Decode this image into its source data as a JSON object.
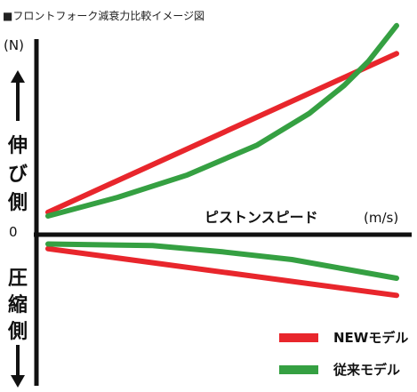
{
  "chart_data": {
    "type": "line",
    "title": "■フロントフォーク減衰力比較イメージ図",
    "ylabel_unit": "(N)",
    "y_positive_label": "伸び側",
    "y_negative_label": "圧縮側",
    "zero_label": "0",
    "xlabel": "ピストンスピード",
    "xlabel_unit": "(m/s)",
    "xlim": [
      0,
      1
    ],
    "ylim": [
      -1,
      1
    ],
    "grid": false,
    "legend_position": "bottom-right",
    "series": [
      {
        "name": "NEWモデル",
        "color": "#e8262c",
        "rebound": {
          "x": [
            0,
            1
          ],
          "y": [
            0.12,
            0.97
          ]
        },
        "compression": {
          "x": [
            0,
            1
          ],
          "y": [
            -0.09,
            -0.39
          ]
        }
      },
      {
        "name": "従来モデル",
        "color": "#35a042",
        "rebound": {
          "x": [
            0,
            0.2,
            0.4,
            0.6,
            0.75,
            0.85,
            0.92,
            1
          ],
          "y": [
            0.1,
            0.2,
            0.32,
            0.48,
            0.65,
            0.8,
            0.93,
            1.12
          ]
        },
        "compression": {
          "x": [
            0,
            0.3,
            0.5,
            0.7,
            0.85,
            1
          ],
          "y": [
            -0.06,
            -0.07,
            -0.11,
            -0.16,
            -0.22,
            -0.28
          ]
        }
      }
    ]
  }
}
